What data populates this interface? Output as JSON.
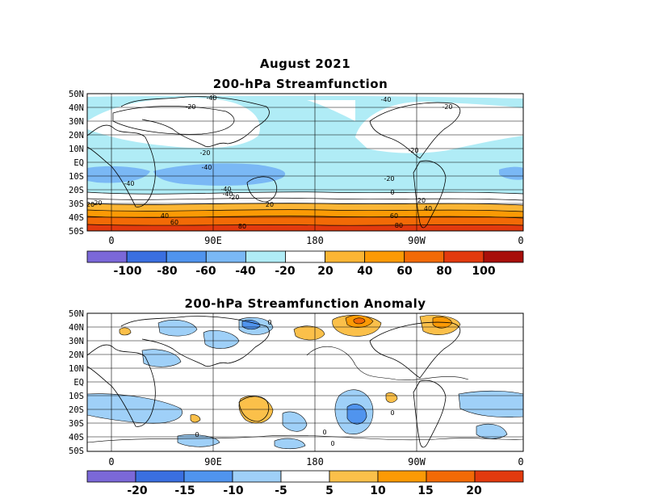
{
  "figure": {
    "main_title": "August 2021",
    "top_panel": {
      "title": "200-hPa Streamfunction",
      "lat_labels": [
        "50N",
        "40N",
        "30N",
        "20N",
        "10N",
        "EQ",
        "10S",
        "20S",
        "30S",
        "40S",
        "50S"
      ],
      "lon_labels": [
        "0",
        "90E",
        "180",
        "90W",
        "0"
      ],
      "contour_labels": [
        "-40",
        "-20",
        "-20",
        "-40",
        "-40",
        "-40",
        "-40",
        "-20",
        "-20",
        "-20",
        "20",
        "20",
        "40",
        "40",
        "60",
        "60",
        "80",
        "80",
        "-40",
        "-20",
        "-20",
        "0",
        "20"
      ],
      "colorbar": {
        "ticks": [
          "-100",
          "-80",
          "-60",
          "-40",
          "-20",
          "20",
          "40",
          "60",
          "80",
          "100"
        ],
        "colors": [
          "#7b68d8",
          "#3a6fe0",
          "#5094ee",
          "#7ab8f5",
          "#b0ecf6",
          "#ffffff",
          "#fbb534",
          "#fc9a05",
          "#f26a06",
          "#e23a0e",
          "#a80f0a"
        ]
      }
    },
    "bottom_panel": {
      "title": "200-hPa Streamfunction Anomaly",
      "lat_labels": [
        "50N",
        "40N",
        "30N",
        "20N",
        "10N",
        "EQ",
        "10S",
        "20S",
        "30S",
        "40S",
        "50S"
      ],
      "lon_labels": [
        "0",
        "90E",
        "180",
        "90W",
        "0"
      ],
      "contour_labels": [
        "0",
        "0",
        "0",
        "0",
        "0"
      ],
      "colorbar": {
        "ticks": [
          "-20",
          "-15",
          "-10",
          "-5",
          "5",
          "10",
          "15",
          "20"
        ],
        "colors": [
          "#7b68d8",
          "#3a6fe0",
          "#5094ee",
          "#9fd0f8",
          "#ffffff",
          "#fbc04a",
          "#fc9a05",
          "#f26a06",
          "#e23a0e"
        ]
      }
    }
  }
}
